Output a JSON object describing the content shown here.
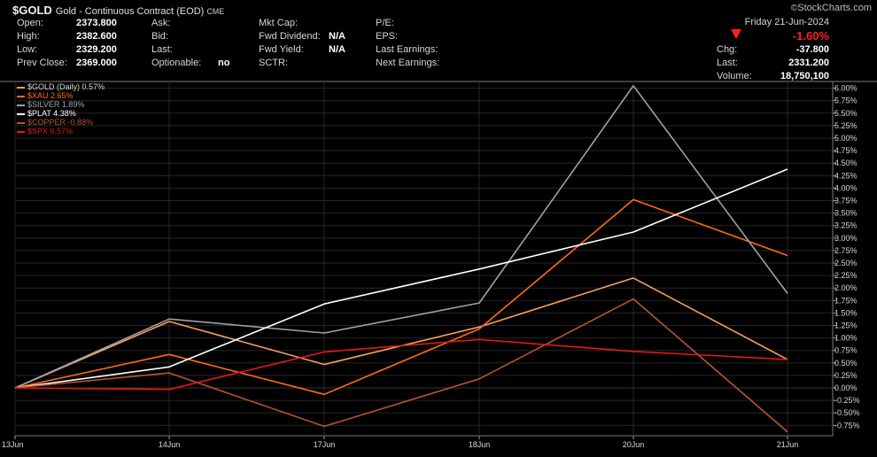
{
  "header": {
    "symbol": "$GOLD",
    "description": "Gold - Continuous Contract (EOD)",
    "exchange": "CME",
    "brand": "StockCharts.com",
    "brand_mark": "©"
  },
  "quote_left": [
    {
      "label": "Open:",
      "value": "2373.800"
    },
    {
      "label": "High:",
      "value": "2382.600"
    },
    {
      "label": "Low:",
      "value": "2329.200"
    },
    {
      "label": "Prev Close:",
      "value": "2369.000"
    }
  ],
  "quote_col2": [
    {
      "label": "Ask:",
      "value": ""
    },
    {
      "label": "Bid:",
      "value": ""
    },
    {
      "label": "Last:",
      "value": ""
    },
    {
      "label": "Optionable:",
      "value": "no"
    }
  ],
  "quote_col3": [
    {
      "label": "Mkt Cap:",
      "value": ""
    },
    {
      "label": "Fwd Dividend:",
      "value": "N/A"
    },
    {
      "label": "Fwd Yield:",
      "value": "N/A"
    },
    {
      "label": "SCTR:",
      "value": ""
    }
  ],
  "quote_col4": [
    {
      "label": "P/E:",
      "value": ""
    },
    {
      "label": "EPS:",
      "value": ""
    },
    {
      "label": "Last Earnings:",
      "value": ""
    },
    {
      "label": "Next Earnings:",
      "value": ""
    }
  ],
  "quote_right": {
    "date": "Friday  21-Jun-2024",
    "change_pct": "-1.60%",
    "rows": [
      {
        "label": "Chg:",
        "value": "-37.800"
      },
      {
        "label": "Last:",
        "value": "2331.200"
      },
      {
        "label": "Volume:",
        "value": "18,750,100"
      }
    ]
  },
  "chart_data": {
    "type": "line",
    "x": [
      "13Jun",
      "14Jun",
      "17Jun",
      "18Jun",
      "20Jun",
      "21Jun"
    ],
    "ylim": [
      -0.85,
      6.1
    ],
    "y_ticks": [
      "6.00%",
      "5.75%",
      "5.50%",
      "5.25%",
      "5.00%",
      "4.75%",
      "4.50%",
      "4.25%",
      "4.00%",
      "3.75%",
      "3.50%",
      "3.25%",
      "3.00%",
      "2.75%",
      "2.50%",
      "2.25%",
      "2.00%",
      "1.75%",
      "1.50%",
      "1.25%",
      "1.00%",
      "0.75%",
      "0.50%",
      "0.25%",
      "0.00%",
      "-0.25%",
      "-0.50%",
      "-0.75%"
    ],
    "y_tick_values": [
      6.0,
      5.75,
      5.5,
      5.25,
      5.0,
      4.75,
      4.5,
      4.25,
      4.0,
      3.75,
      3.5,
      3.25,
      3.0,
      2.75,
      2.5,
      2.25,
      2.0,
      1.75,
      1.5,
      1.25,
      1.0,
      0.75,
      0.5,
      0.25,
      0.0,
      -0.25,
      -0.5,
      -0.75
    ],
    "grid": true,
    "legend_position": "top-left",
    "series": [
      {
        "name": "$GOLD (Daily) 0.57%",
        "color": "#f5a25a",
        "values": [
          0.0,
          1.33,
          0.47,
          1.22,
          2.2,
          0.57
        ]
      },
      {
        "name": "$XAU 2.65%",
        "color": "#ff6a1a",
        "values": [
          0.0,
          0.67,
          -0.13,
          1.18,
          3.77,
          2.65
        ]
      },
      {
        "name": "$SILVER 1.89%",
        "color": "#9aa3ab",
        "values": [
          0.0,
          1.38,
          1.1,
          1.7,
          6.05,
          1.89
        ]
      },
      {
        "name": "$PLAT 4.38%",
        "color": "#ffffff",
        "values": [
          0.0,
          0.42,
          1.68,
          2.38,
          3.12,
          4.38
        ]
      },
      {
        "name": "$COPPER -0.88%",
        "color": "#b4552e",
        "values": [
          0.0,
          0.3,
          -0.77,
          0.18,
          1.78,
          -0.88
        ]
      },
      {
        "name": "$SPX 0.57%",
        "color": "#e8161a",
        "values": [
          0.0,
          -0.03,
          0.72,
          0.97,
          0.73,
          0.57
        ]
      }
    ]
  }
}
